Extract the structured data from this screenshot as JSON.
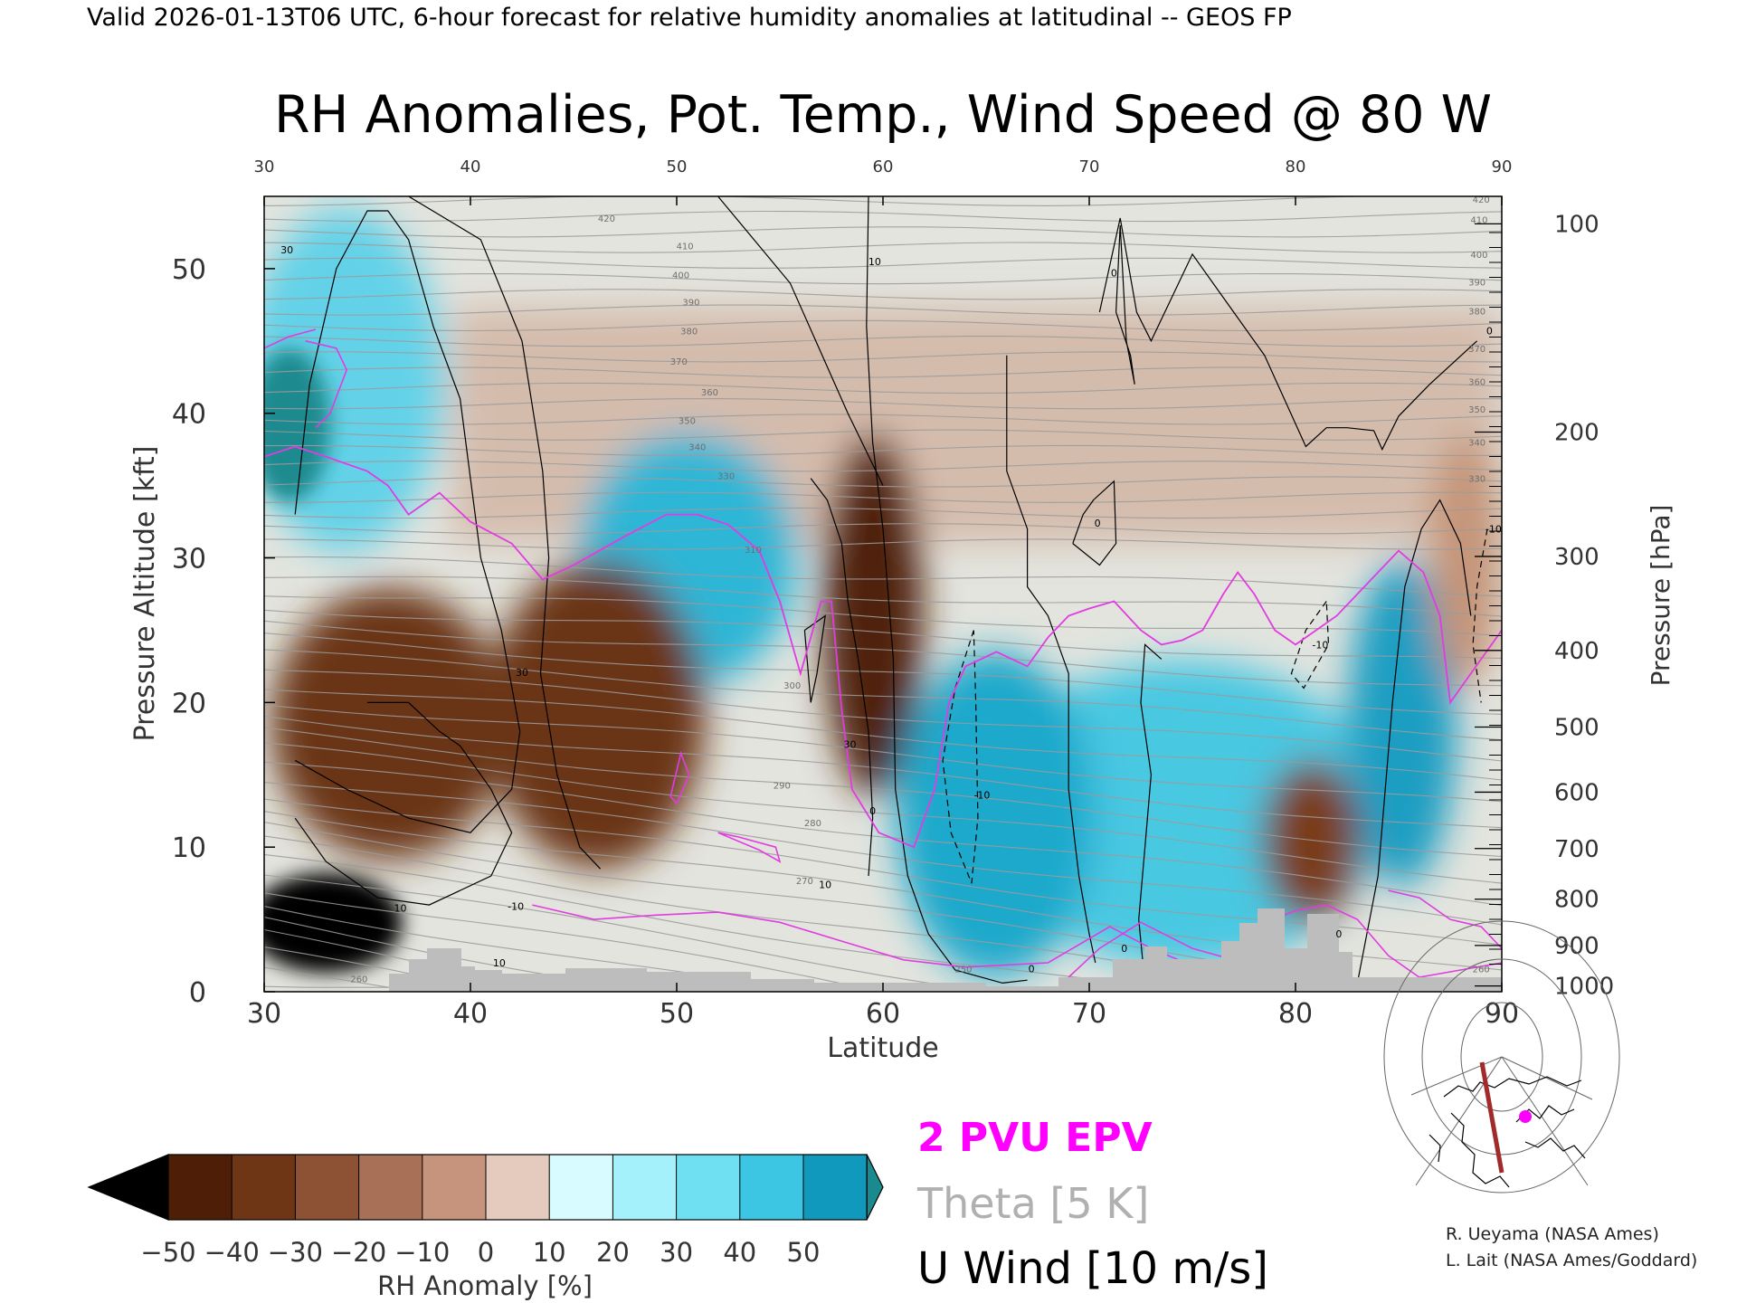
{
  "header": {
    "valid_line": "Valid 2026-01-13T06 UTC, 6-hour forecast for relative humidity anomalies at latitudinal -- GEOS FP"
  },
  "chart_data": {
    "type": "heatmap",
    "title": "RH Anomalies, Pot. Temp., Wind Speed @ 80 W",
    "xlabel": "Latitude",
    "ylabel_left": "Pressure Altitude [kft]",
    "ylabel_right": "Pressure [hPa]",
    "xlim": [
      30,
      90
    ],
    "ylim": [
      0,
      55
    ],
    "x_ticks": [
      30,
      40,
      50,
      60,
      70,
      80,
      90
    ],
    "y_ticks": [
      0,
      10,
      20,
      30,
      40,
      50
    ],
    "right_ticks": [
      {
        "label": "100",
        "kft": 53.1
      },
      {
        "label": "200",
        "kft": 38.7
      },
      {
        "label": "300",
        "kft": 30.1
      },
      {
        "label": "400",
        "kft": 23.6
      },
      {
        "label": "500",
        "kft": 18.3
      },
      {
        "label": "600",
        "kft": 13.8
      },
      {
        "label": "700",
        "kft": 9.9
      },
      {
        "label": "800",
        "kft": 6.4
      },
      {
        "label": "900",
        "kft": 3.2
      },
      {
        "label": "1000",
        "kft": 0.4
      }
    ],
    "theta_labels": [
      {
        "label": "420",
        "lat": 46.6,
        "kft": 53.5
      },
      {
        "label": "410",
        "lat": 50.4,
        "kft": 51.6
      },
      {
        "label": "400",
        "lat": 50.2,
        "kft": 49.6
      },
      {
        "label": "390",
        "lat": 50.7,
        "kft": 47.7
      },
      {
        "label": "380",
        "lat": 50.6,
        "kft": 45.7
      },
      {
        "label": "370",
        "lat": 50.1,
        "kft": 43.6
      },
      {
        "label": "360",
        "lat": 51.6,
        "kft": 41.5
      },
      {
        "label": "350",
        "lat": 50.5,
        "kft": 39.5
      },
      {
        "label": "340",
        "lat": 51.0,
        "kft": 37.7
      },
      {
        "label": "330",
        "lat": 52.4,
        "kft": 35.7
      },
      {
        "label": "310",
        "lat": 53.7,
        "kft": 30.6
      },
      {
        "label": "300",
        "lat": 55.6,
        "kft": 21.2
      },
      {
        "label": "290",
        "lat": 55.1,
        "kft": 14.3
      },
      {
        "label": "280",
        "lat": 56.6,
        "kft": 11.7
      },
      {
        "label": "270",
        "lat": 56.2,
        "kft": 7.7
      },
      {
        "label": "260",
        "lat": 34.6,
        "kft": 0.9
      },
      {
        "label": "250",
        "lat": 63.9,
        "kft": 1.6
      },
      {
        "label": "420",
        "lat": 89.0,
        "kft": 54.8
      },
      {
        "label": "410",
        "lat": 88.9,
        "kft": 53.4
      },
      {
        "label": "400",
        "lat": 88.9,
        "kft": 51.0
      },
      {
        "label": "390",
        "lat": 88.8,
        "kft": 49.1
      },
      {
        "label": "380",
        "lat": 88.8,
        "kft": 47.1
      },
      {
        "label": "370",
        "lat": 88.8,
        "kft": 44.5
      },
      {
        "label": "360",
        "lat": 88.8,
        "kft": 42.2
      },
      {
        "label": "350",
        "lat": 88.8,
        "kft": 40.3
      },
      {
        "label": "340",
        "lat": 88.8,
        "kft": 38.0
      },
      {
        "label": "330",
        "lat": 88.8,
        "kft": 35.5
      },
      {
        "label": "260",
        "lat": 89.0,
        "kft": 1.6
      }
    ],
    "wind_labels": [
      {
        "label": "30",
        "lat": 31.1,
        "kft": 51.3
      },
      {
        "label": "10",
        "lat": 59.6,
        "kft": 50.5
      },
      {
        "label": "30",
        "lat": 42.5,
        "kft": 22.1
      },
      {
        "label": "30",
        "lat": 58.4,
        "kft": 17.1
      },
      {
        "label": "0",
        "lat": 59.5,
        "kft": 12.5
      },
      {
        "label": "10",
        "lat": 57.2,
        "kft": 7.4
      },
      {
        "label": "-10",
        "lat": 64.8,
        "kft": 13.6
      },
      {
        "label": "0",
        "lat": 70.4,
        "kft": 32.4
      },
      {
        "label": "0",
        "lat": 71.2,
        "kft": 49.7
      },
      {
        "label": "0",
        "lat": 71.7,
        "kft": 3.0
      },
      {
        "label": "-10",
        "lat": 81.2,
        "kft": 24.0
      },
      {
        "label": "0",
        "lat": 82.1,
        "kft": 4.0
      },
      {
        "label": "0",
        "lat": 89.4,
        "kft": 45.7
      },
      {
        "label": "-10",
        "lat": 89.6,
        "kft": 32.0
      },
      {
        "label": "10",
        "lat": 36.6,
        "kft": 5.8
      },
      {
        "label": "10",
        "lat": 41.4,
        "kft": 2.0
      },
      {
        "label": "-10",
        "lat": 42.2,
        "kft": 5.9
      },
      {
        "label": "0",
        "lat": 67.2,
        "kft": 1.6
      }
    ],
    "colorbar": {
      "label": "RH Anomaly [%]",
      "ticks": [
        "-50",
        "-40",
        "-30",
        "-20",
        "-10",
        "0",
        "10",
        "20",
        "30",
        "40",
        "50"
      ],
      "colors": [
        "#4e1f06",
        "#6e3614",
        "#8c5233",
        "#a87056",
        "#c6937c",
        "#e4cbbd",
        "#d7fbff",
        "#a4f1fb",
        "#6ee0f2",
        "#3cc6e4",
        "#1099bd"
      ],
      "under_color": "#000000",
      "over_color": "#1a8a8e"
    },
    "legend": [
      {
        "name": "2 PVU EPV",
        "color": "#ff00ff"
      },
      {
        "name": "Theta [5 K]",
        "color": "#b0b0b0"
      },
      {
        "name": "U Wind [10 m/s]",
        "color": "#000000"
      }
    ],
    "credits": [
      "R. Ueyama (NASA Ames)",
      "L. Lait (NASA Ames/Goddard)"
    ]
  }
}
